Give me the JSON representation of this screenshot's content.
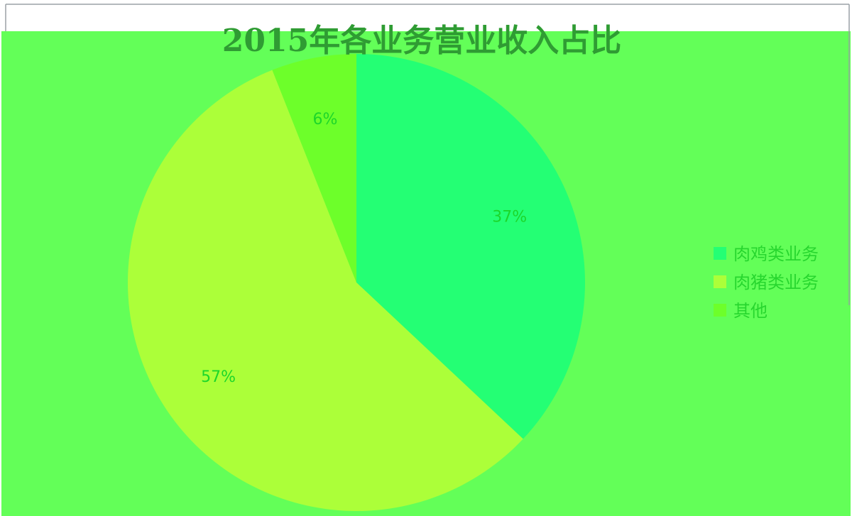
{
  "colors": {
    "page_bg": "#ffffff",
    "chart_bg": "#63ff58",
    "title_text": "#2f9c33",
    "label_text": "#1cd62a",
    "legend_text": "#27d62e",
    "border": "#9aa0a6"
  },
  "chart_data": {
    "type": "pie",
    "title": "2015年各业务营业收入占比",
    "legend_position": "right",
    "slices": [
      {
        "name": "肉鸡类业务",
        "value": 37,
        "label": "37%",
        "color": "#24ff74"
      },
      {
        "name": "肉猪类业务",
        "value": 57,
        "label": "57%",
        "color": "#acff39"
      },
      {
        "name": "其他",
        "value": 6,
        "label": "6%",
        "color": "#6dff2a"
      }
    ]
  }
}
